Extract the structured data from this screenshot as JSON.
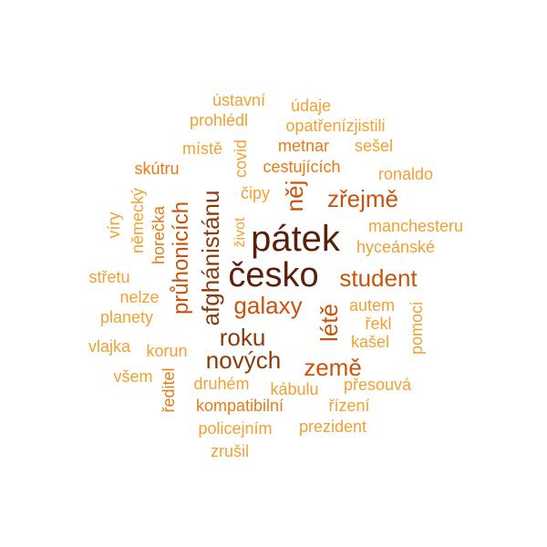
{
  "colors": {
    "darkest": "#5a200a",
    "dark": "#8b3a0c",
    "medium": "#c8530a",
    "light": "#e57b14",
    "lightest": "#f0a132"
  },
  "words": [
    "pátek",
    "česko",
    "student",
    "země",
    "průhonicích",
    "afghánistánu",
    "zřejmě",
    "galaxy",
    "nových",
    "roku",
    "létě",
    "něj",
    "manchesteru",
    "hyceánské",
    "ronaldo",
    "cestujících",
    "metnar",
    "sešel",
    "opatřenízjistili",
    "údaje",
    "ústavní",
    "prohlédl",
    "místě",
    "covid",
    "skútru",
    "čipy",
    "život",
    "víry",
    "německý",
    "horečka",
    "střetu",
    "nelze",
    "planety",
    "vlajka",
    "korun",
    "všem",
    "ředitel",
    "druhém",
    "kompatibilní",
    "kábulu",
    "přesouvá",
    "řízení",
    "policejním",
    "prezident",
    "zrušil",
    "autem",
    "řekl",
    "kašel",
    "pomoci"
  ]
}
